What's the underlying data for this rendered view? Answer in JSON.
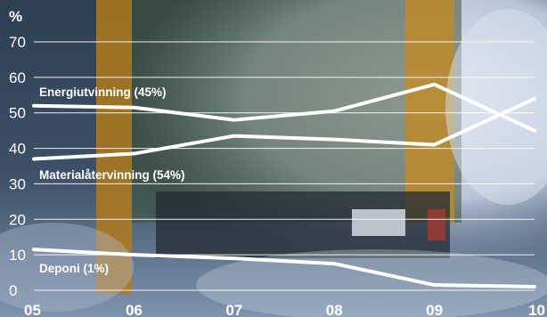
{
  "chart_data": {
    "type": "line",
    "unit": "%",
    "x": [
      "05",
      "06",
      "07",
      "08",
      "09",
      "10"
    ],
    "ylim": [
      0,
      70
    ],
    "yticks": [
      0,
      10,
      20,
      30,
      40,
      50,
      60,
      70
    ],
    "grid": true,
    "series": [
      {
        "name": "Energiutvinning (45%)",
        "values": [
          52,
          51.5,
          48,
          50.5,
          58,
          45
        ]
      },
      {
        "name": "Materialåtervinning (54%)",
        "values": [
          37,
          38.5,
          43.5,
          42.5,
          41,
          54
        ]
      },
      {
        "name": "Deponi (1%)",
        "values": [
          11.5,
          10,
          9,
          7.5,
          1.5,
          1
        ]
      }
    ],
    "line_color": "#ffffff",
    "grid_color": "#ffffff"
  }
}
